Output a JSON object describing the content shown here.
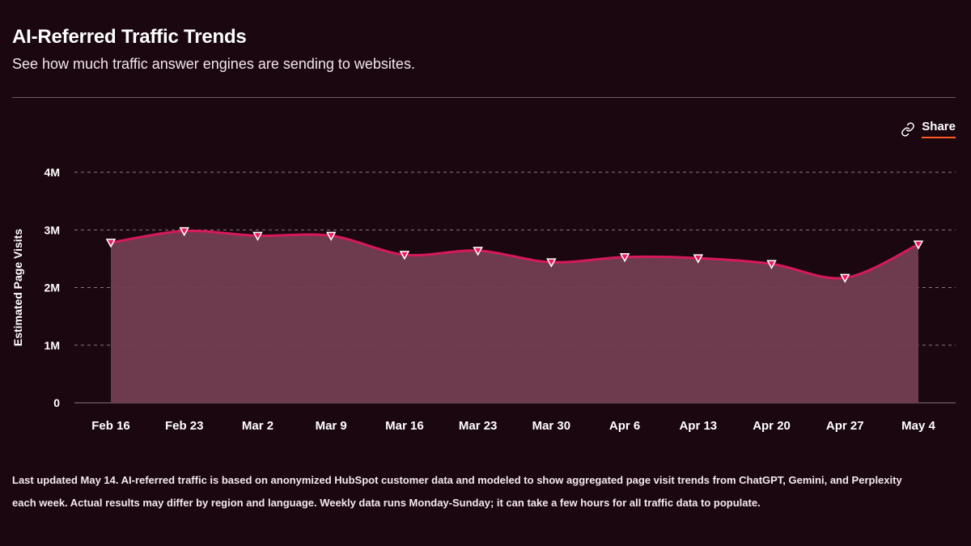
{
  "header": {
    "title": "AI-Referred Traffic Trends",
    "subtitle": "See how much traffic answer engines are sending to websites."
  },
  "share": {
    "label": "Share",
    "icon": "link-icon"
  },
  "chart_data": {
    "type": "area",
    "ylabel": "Estimated Page Visits",
    "ylim": [
      0,
      4000000
    ],
    "yticks": [
      0,
      1000000,
      2000000,
      3000000,
      4000000
    ],
    "ytick_labels": [
      "0",
      "1M",
      "2M",
      "3M",
      "4M"
    ],
    "grid": true,
    "categories": [
      "Feb 16",
      "Feb 23",
      "Mar 2",
      "Mar 9",
      "Mar 16",
      "Mar 23",
      "Mar 30",
      "Apr 6",
      "Apr 13",
      "Apr 20",
      "Apr 27",
      "May 4"
    ],
    "values": [
      2780000,
      2980000,
      2900000,
      2900000,
      2570000,
      2640000,
      2440000,
      2530000,
      2510000,
      2410000,
      2170000,
      2750000
    ],
    "colors": {
      "line": "#d7195a",
      "area": "#733e52",
      "marker": "#e81d5f",
      "grid": "#8a7780"
    }
  },
  "footnote": {
    "line1": "Last updated May 14. AI-referred traffic is based on anonymized HubSpot customer data and modeled to show aggregated page visit trends from ChatGPT, Gemini, and Perplexity",
    "line2": "each week. Actual results may differ by region and language. Weekly data runs Monday-Sunday; it can take a few hours for all traffic data to populate."
  }
}
